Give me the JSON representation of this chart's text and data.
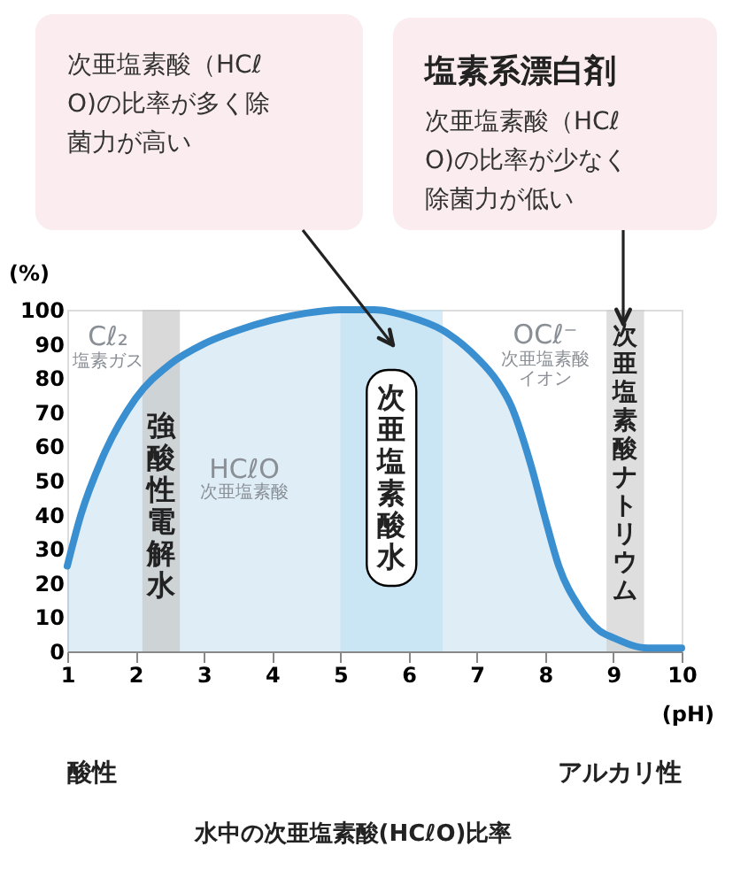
{
  "chart_data": {
    "type": "area",
    "xlabel": "(pH)",
    "ylabel": "(%)",
    "xlim": [
      1,
      10
    ],
    "ylim": [
      0,
      100
    ],
    "xticks": [
      1,
      2,
      3,
      4,
      5,
      6,
      7,
      8,
      9,
      10
    ],
    "yticks": [
      0,
      10,
      20,
      30,
      40,
      50,
      60,
      70,
      80,
      90,
      100
    ],
    "grid": false,
    "series": [
      {
        "color": "#3a8fd0",
        "x": [
          1,
          1.2,
          1.5,
          2,
          2.5,
          3,
          3.5,
          4,
          4.5,
          5,
          5.5,
          6,
          6.5,
          7,
          7.3,
          7.5,
          7.8,
          8,
          8.2,
          8.5,
          8.8,
          9,
          9.5,
          10
        ],
        "values": [
          25,
          40,
          56,
          74,
          84,
          90,
          94,
          97,
          99,
          100,
          100,
          98,
          94,
          86,
          79,
          72,
          54,
          39,
          25,
          13,
          6,
          4,
          1,
          1
        ]
      }
    ],
    "bands": [
      {
        "axis": "x",
        "from": 2.1,
        "to": 2.65,
        "label": "強酸性電解水",
        "color": "#c4c4c4"
      },
      {
        "axis": "x",
        "from": 5.0,
        "to": 6.5,
        "label": "次亜塩素酸水",
        "color": "#bfe2f4"
      },
      {
        "axis": "x",
        "from": 8.9,
        "to": 9.45,
        "label": "次亜塩素酸ナトリウム",
        "color": "#cccccc"
      }
    ],
    "annotations": [
      "次亜塩素酸（HCℓO)の比率が多く除菌力が高い",
      "塩素系漂白剤",
      "次亜塩素酸（HCℓO)の比率が少なく除菌力が低い",
      "Cℓ₂",
      "塩素ガス",
      "HCℓO",
      "次亜塩素酸",
      "OCℓ⁻",
      "次亜塩素酸",
      "イオン",
      "酸性",
      "アルカリ性",
      "水中の次亜塩素酸(HCℓO)比率"
    ]
  }
}
